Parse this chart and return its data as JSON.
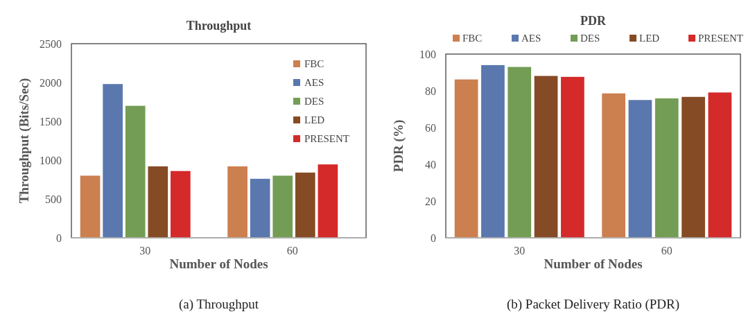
{
  "chart_data": [
    {
      "type": "bar",
      "title": "Throughput",
      "xlabel": "Number of Nodes",
      "ylabel": "Throughput  (Bits/Sec)",
      "categories": [
        "30",
        "60"
      ],
      "series": [
        {
          "name": "FBC",
          "color": "#cc7f4f",
          "values": [
            800,
            920
          ]
        },
        {
          "name": "AES",
          "color": "#5a78ae",
          "values": [
            1980,
            760
          ]
        },
        {
          "name": "DES",
          "color": "#739d55",
          "values": [
            1700,
            800
          ]
        },
        {
          "name": "LED",
          "color": "#854b25",
          "values": [
            920,
            840
          ]
        },
        {
          "name": "PRESENT",
          "color": "#d42a2a",
          "values": [
            860,
            945
          ]
        }
      ],
      "ylim": [
        0,
        2500
      ],
      "yticks": [
        0,
        500,
        1000,
        1500,
        2000,
        2500
      ],
      "legend": "top right",
      "annotations": [
        "(a) Throughput"
      ]
    },
    {
      "type": "bar",
      "title": "PDR",
      "xlabel": "Number of Nodes",
      "ylabel": "PDR (%)",
      "categories": [
        "30",
        "60"
      ],
      "series": [
        {
          "name": "FBC",
          "color": "#cc7f4f",
          "values": [
            86.2,
            78.6
          ]
        },
        {
          "name": "AES",
          "color": "#5a78ae",
          "values": [
            94,
            75
          ]
        },
        {
          "name": "DES",
          "color": "#739d55",
          "values": [
            93,
            75.9
          ]
        },
        {
          "name": "LED",
          "color": "#854b25",
          "values": [
            88.1,
            76.7
          ]
        },
        {
          "name": "PRESENT",
          "color": "#d42a2a",
          "values": [
            87.6,
            79.1
          ]
        }
      ],
      "ylim": [
        0,
        100
      ],
      "yticks": [
        0,
        20,
        40,
        60,
        80,
        100
      ],
      "legend": "top",
      "annotations": [
        "(b) Packet Delivery Ratio (PDR)"
      ]
    }
  ]
}
